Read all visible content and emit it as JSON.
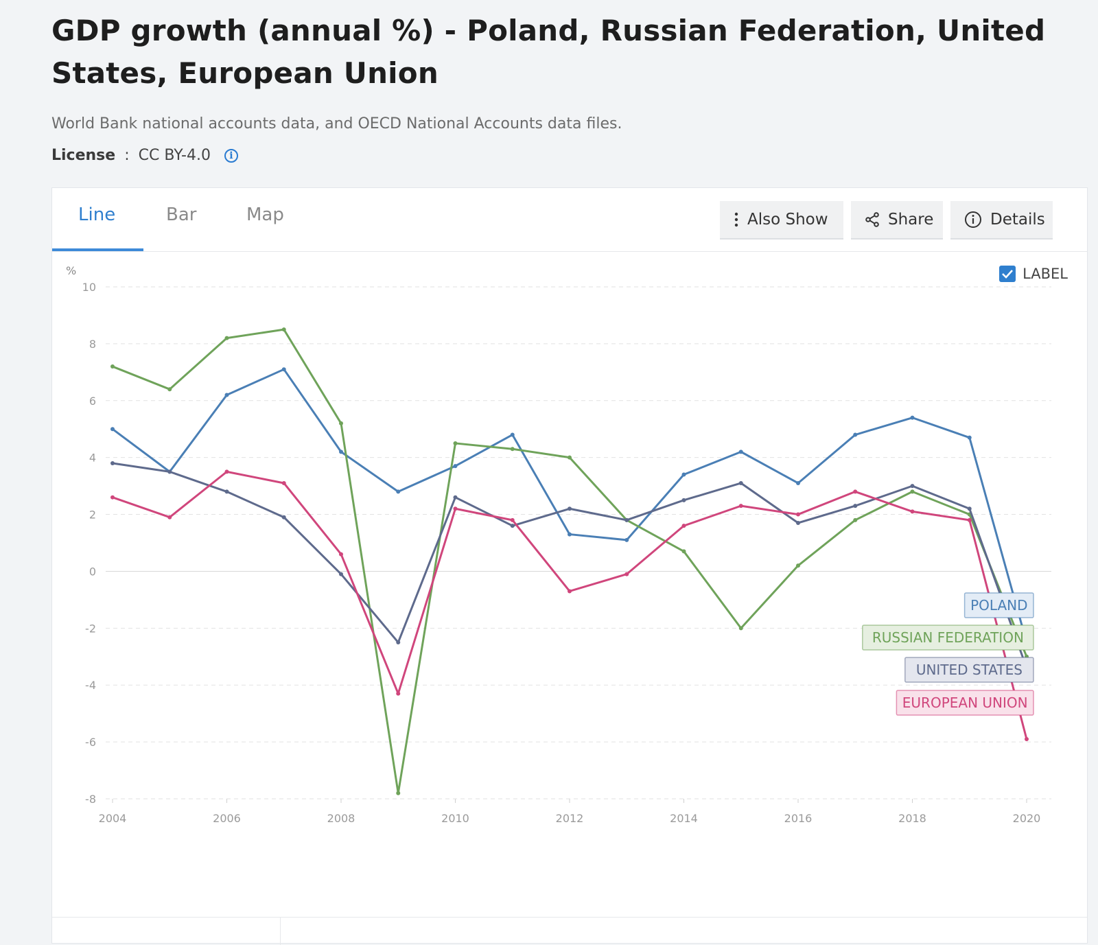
{
  "header": {
    "title": "GDP growth (annual %) - Poland, Russian Federation, United States, European Union",
    "source": "World Bank national accounts data, and OECD National Accounts data files.",
    "license_label": "License",
    "license_sep": " : ",
    "license_value": "CC BY-4.0",
    "info_glyph": "i"
  },
  "tabs": [
    {
      "label": "Line",
      "active": true
    },
    {
      "label": "Bar",
      "active": false
    },
    {
      "label": "Map",
      "active": false
    }
  ],
  "toolbar": {
    "also_show_label": "Also Show",
    "share_label": "Share",
    "details_label": "Details"
  },
  "label_toggle": {
    "label": "LABEL",
    "checked": true
  },
  "colors": {
    "poland": "#4a7fb5",
    "russia": "#6fa35a",
    "us": "#5e6a8c",
    "eu": "#d0467c",
    "accent": "#2f7fce"
  },
  "chart_data": {
    "type": "line",
    "ylabel": "%",
    "ylim": [
      -8,
      10
    ],
    "yticks": [
      "10",
      "8",
      "6",
      "4",
      "2",
      "0",
      "-2",
      "-4",
      "-6",
      "-8"
    ],
    "x": [
      2004,
      2005,
      2006,
      2007,
      2008,
      2009,
      2010,
      2011,
      2012,
      2013,
      2014,
      2015,
      2016,
      2017,
      2018,
      2019,
      2020
    ],
    "xticks": [
      "2004",
      "2006",
      "2008",
      "2010",
      "2012",
      "2014",
      "2016",
      "2018",
      "2020"
    ],
    "grid": true,
    "series": [
      {
        "name": "POLAND",
        "key": "poland",
        "values": [
          5.0,
          3.5,
          6.2,
          7.1,
          4.2,
          2.8,
          3.7,
          4.8,
          1.3,
          1.1,
          3.4,
          4.2,
          3.1,
          4.8,
          5.4,
          4.7,
          -2.5
        ]
      },
      {
        "name": "RUSSIAN FEDERATION",
        "key": "russia",
        "values": [
          7.2,
          6.4,
          8.2,
          8.5,
          5.2,
          -7.8,
          4.5,
          4.3,
          4.0,
          1.8,
          0.7,
          -2.0,
          0.2,
          1.8,
          2.8,
          2.0,
          -3.0
        ]
      },
      {
        "name": "UNITED STATES",
        "key": "us",
        "values": [
          3.8,
          3.5,
          2.8,
          1.9,
          -0.1,
          -2.5,
          2.6,
          1.6,
          2.2,
          1.8,
          2.5,
          3.1,
          1.7,
          2.3,
          3.0,
          2.2,
          -3.4
        ]
      },
      {
        "name": "EUROPEAN UNION",
        "key": "eu",
        "values": [
          2.6,
          1.9,
          3.5,
          3.1,
          0.6,
          -4.3,
          2.2,
          1.8,
          -0.7,
          -0.1,
          1.6,
          2.3,
          2.0,
          2.8,
          2.1,
          1.8,
          -5.9
        ]
      }
    ]
  }
}
